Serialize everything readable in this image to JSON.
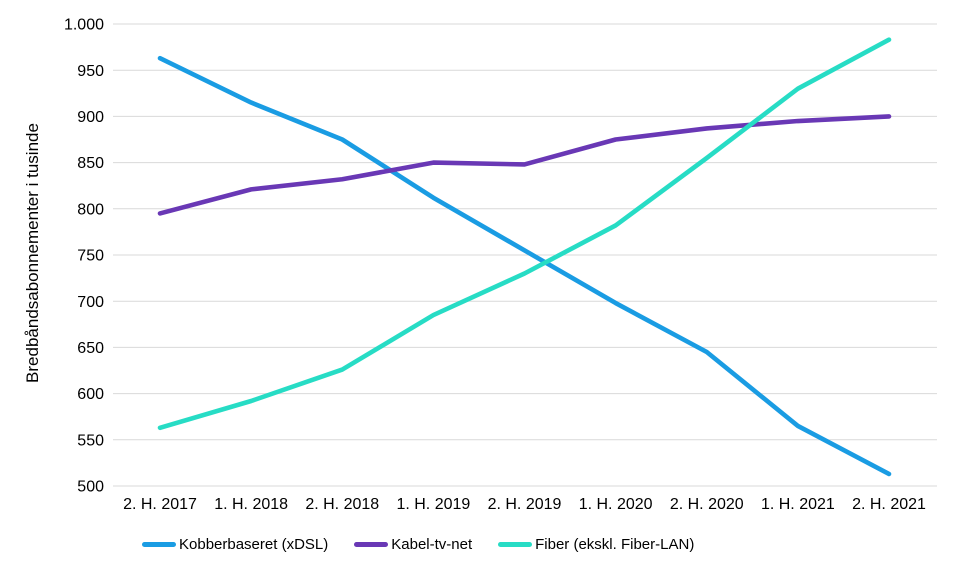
{
  "chart_data": {
    "type": "line",
    "title": "",
    "xlabel": "",
    "ylabel": "Bredbåndsabonnementer i tusinde",
    "categories": [
      "2. H. 2017",
      "1. H. 2018",
      "2. H. 2018",
      "1. H. 2019",
      "2. H. 2019",
      "1. H. 2020",
      "2. H. 2020",
      "1. H. 2021",
      "2. H. 2021"
    ],
    "series": [
      {
        "name": "Kobberbaseret (xDSL)",
        "color": "#1A9CE3",
        "values": [
          963,
          915,
          875,
          812,
          755,
          698,
          645,
          565,
          513
        ]
      },
      {
        "name": "Kabel-tv-net",
        "color": "#6938B5",
        "values": [
          795,
          821,
          832,
          850,
          848,
          875,
          887,
          895,
          900
        ]
      },
      {
        "name": "Fiber (ekskl. Fiber-LAN)",
        "color": "#27DCC5",
        "values": [
          563,
          592,
          626,
          685,
          730,
          782,
          855,
          930,
          983
        ]
      }
    ],
    "ylim": [
      500,
      1000
    ],
    "ytick_step": 50,
    "ytick_labels": [
      "500",
      "550",
      "600",
      "650",
      "700",
      "750",
      "800",
      "850",
      "900",
      "950",
      "1.000"
    ],
    "grid": "horizontal",
    "gridline_color": "#D9D9D9",
    "text_color": "#000000",
    "background": "#FFFFFF",
    "legend_position": "bottom",
    "line_width": 4.6
  }
}
